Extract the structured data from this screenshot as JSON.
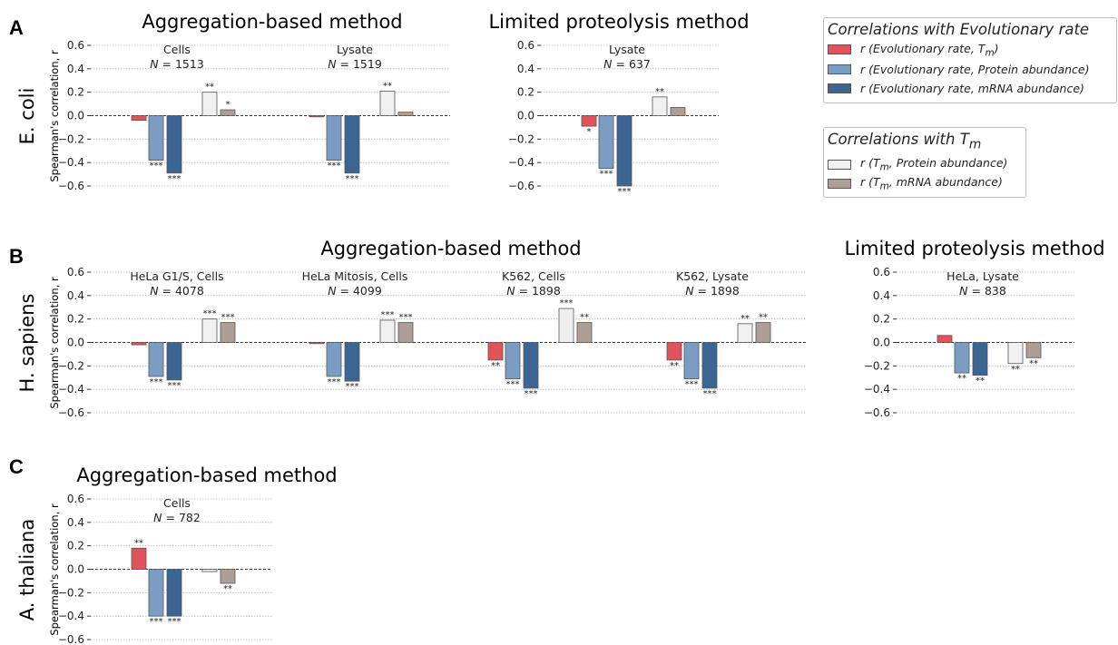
{
  "colors": {
    "tm": "#e05359",
    "protein": "#7b9dc4",
    "mrna": "#3b6693",
    "tm_protein": "#f0f0f0",
    "tm_mrna": "#ad9e98"
  },
  "rows": [
    {
      "letter": "A",
      "organism": "E. coli"
    },
    {
      "letter": "B",
      "organism": "H. sapiens"
    },
    {
      "letter": "C",
      "organism": "A. thaliana"
    }
  ],
  "section_titles": [
    "Aggregation-based method",
    "Limited proteolysis method",
    "Aggregation-based method",
    "Limited proteolysis method",
    "Aggregation-based method"
  ],
  "ylabel": "Spearman's correlation, r",
  "legends": {
    "evo": {
      "title": "Correlations with Evolutionary rate",
      "items": [
        {
          "color_key": "tm",
          "prefix": "r (",
          "text": "Evolutionary rate, T",
          "sub": "m",
          "suffix": ")"
        },
        {
          "color_key": "protein",
          "prefix": "r (",
          "text": "Evolutionary rate, Protein abundance",
          "sub": "",
          "suffix": ")"
        },
        {
          "color_key": "mrna",
          "prefix": "r (",
          "text": "Evolutionary rate, mRNA abundance",
          "sub": "",
          "suffix": ")"
        }
      ]
    },
    "tm": {
      "title": "Correlations with T",
      "title_sub": "m",
      "items": [
        {
          "color_key": "tm_protein",
          "prefix": "r (T",
          "sub": "m",
          "text": ", Protein abundance",
          "suffix": ")"
        },
        {
          "color_key": "tm_mrna",
          "prefix": "r (T",
          "sub": "m",
          "text": ", mRNA abundance",
          "suffix": ")"
        }
      ]
    }
  },
  "chart_data": [
    {
      "type": "bar",
      "row": "A",
      "title": "Cells",
      "n_label": "N = 1513",
      "ylim": [
        -0.6,
        0.6
      ],
      "yticks": [
        "−0.6",
        "−0.4",
        "−0.2",
        "0.0",
        "0.2",
        "0.4",
        "0.6"
      ],
      "categories": [
        "r (Evolutionary rate, Tm)",
        "r (Evolutionary rate, Protein abundance)",
        "r (Evolutionary rate, mRNA abundance)",
        "r (Tm, Protein abundance)",
        "r (Tm, mRNA abundance)"
      ],
      "values": [
        -0.04,
        -0.38,
        -0.49,
        0.2,
        0.05
      ],
      "significance": [
        "",
        "***",
        "***",
        "**",
        "*"
      ]
    },
    {
      "type": "bar",
      "row": "A",
      "title": "Lysate",
      "n_label": "N = 1519",
      "ylim": [
        -0.6,
        0.6
      ],
      "yticks": [],
      "categories": [
        "r (Evolutionary rate, Tm)",
        "r (Evolutionary rate, Protein abundance)",
        "r (Evolutionary rate, mRNA abundance)",
        "r (Tm, Protein abundance)",
        "r (Tm, mRNA abundance)"
      ],
      "values": [
        -0.01,
        -0.38,
        -0.49,
        0.21,
        0.03
      ],
      "significance": [
        "",
        "***",
        "***",
        "**",
        ""
      ]
    },
    {
      "type": "bar",
      "row": "A",
      "title": "Lysate",
      "n_label": "N = 637",
      "ylim": [
        -0.6,
        0.6
      ],
      "yticks": [
        "−0.6",
        "−0.4",
        "−0.2",
        "0.0",
        "0.2",
        "0.4",
        "0.6"
      ],
      "categories": [
        "r (Evolutionary rate, Tm)",
        "r (Evolutionary rate, Protein abundance)",
        "r (Evolutionary rate, mRNA abundance)",
        "r (Tm, Protein abundance)",
        "r (Tm, mRNA abundance)"
      ],
      "values": [
        -0.09,
        -0.45,
        -0.6,
        0.16,
        0.07
      ],
      "significance": [
        "*",
        "***",
        "***",
        "**",
        ""
      ]
    },
    {
      "type": "bar",
      "row": "B",
      "title": "HeLa G1/S, Cells",
      "n_label": "N = 4078",
      "ylim": [
        -0.6,
        0.6
      ],
      "yticks": [
        "−0.6",
        "−0.4",
        "−0.2",
        "0.0",
        "0.2",
        "0.4",
        "0.6"
      ],
      "categories": [
        "r (Evolutionary rate, Tm)",
        "r (Evolutionary rate, Protein abundance)",
        "r (Evolutionary rate, mRNA abundance)",
        "r (Tm, Protein abundance)",
        "r (Tm, mRNA abundance)"
      ],
      "values": [
        -0.02,
        -0.29,
        -0.32,
        0.2,
        0.17
      ],
      "significance": [
        "",
        "***",
        "***",
        "***",
        "***"
      ]
    },
    {
      "type": "bar",
      "row": "B",
      "title": "HeLa Mitosis, Cells",
      "n_label": "N = 4099",
      "ylim": [
        -0.6,
        0.6
      ],
      "yticks": [],
      "categories": [
        "r (Evolutionary rate, Tm)",
        "r (Evolutionary rate, Protein abundance)",
        "r (Evolutionary rate, mRNA abundance)",
        "r (Tm, Protein abundance)",
        "r (Tm, mRNA abundance)"
      ],
      "values": [
        -0.01,
        -0.29,
        -0.33,
        0.19,
        0.17
      ],
      "significance": [
        "",
        "***",
        "***",
        "***",
        "***"
      ]
    },
    {
      "type": "bar",
      "row": "B",
      "title": "K562, Cells",
      "n_label": "N = 1898",
      "ylim": [
        -0.6,
        0.6
      ],
      "yticks": [],
      "categories": [
        "r (Evolutionary rate, Tm)",
        "r (Evolutionary rate, Protein abundance)",
        "r (Evolutionary rate, mRNA abundance)",
        "r (Tm, Protein abundance)",
        "r (Tm, mRNA abundance)"
      ],
      "values": [
        -0.15,
        -0.31,
        -0.39,
        0.29,
        0.17
      ],
      "significance": [
        "**",
        "***",
        "***",
        "***",
        "**"
      ]
    },
    {
      "type": "bar",
      "row": "B",
      "title": "K562, Lysate",
      "n_label": "N = 1898",
      "ylim": [
        -0.6,
        0.6
      ],
      "yticks": [],
      "categories": [
        "r (Evolutionary rate, Tm)",
        "r (Evolutionary rate, Protein abundance)",
        "r (Evolutionary rate, mRNA abundance)",
        "r (Tm, Protein abundance)",
        "r (Tm, mRNA abundance)"
      ],
      "values": [
        -0.15,
        -0.31,
        -0.39,
        0.16,
        0.17
      ],
      "significance": [
        "**",
        "***",
        "***",
        "**",
        "**"
      ]
    },
    {
      "type": "bar",
      "row": "B",
      "title": "HeLa, Lysate",
      "n_label": "N = 838",
      "ylim": [
        -0.6,
        0.6
      ],
      "yticks": [
        "−0.6",
        "−0.4",
        "−0.2",
        "0.0",
        "0.2",
        "0.4",
        "0.6"
      ],
      "categories": [
        "r (Evolutionary rate, Tm)",
        "r (Evolutionary rate, Protein abundance)",
        "r (Evolutionary rate, mRNA abundance)",
        "r (Tm, Protein abundance)",
        "r (Tm, mRNA abundance)"
      ],
      "values": [
        0.06,
        -0.26,
        -0.28,
        -0.18,
        -0.13
      ],
      "significance": [
        "",
        "**",
        "**",
        "**",
        "**"
      ]
    },
    {
      "type": "bar",
      "row": "C",
      "title": "Cells",
      "n_label": "N = 782",
      "ylim": [
        -0.6,
        0.6
      ],
      "yticks": [
        "−0.6",
        "−0.4",
        "−0.2",
        "0.0",
        "0.2",
        "0.4",
        "0.6"
      ],
      "categories": [
        "r (Evolutionary rate, Tm)",
        "r (Evolutionary rate, Protein abundance)",
        "r (Evolutionary rate, mRNA abundance)",
        "r (Tm, Protein abundance)",
        "r (Tm, mRNA abundance)"
      ],
      "values": [
        0.18,
        -0.4,
        -0.4,
        -0.02,
        -0.12
      ],
      "significance": [
        "**",
        "***",
        "***",
        "",
        "**"
      ]
    }
  ]
}
